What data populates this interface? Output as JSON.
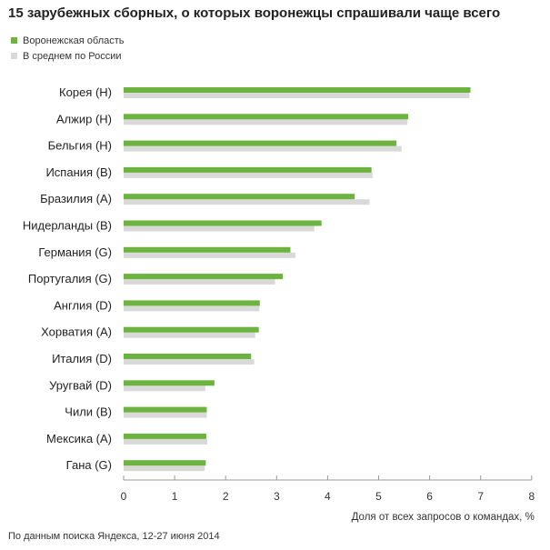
{
  "title": "15 зарубежных сборных, о которых воронежцы спрашивали чаще всего",
  "source": "По данным поиска Яндекса, 12-27 июня 2014",
  "colors": {
    "voronezh": "#6db33f",
    "russia": "#d9d9d9",
    "axis": "#999999"
  },
  "chart_data": {
    "type": "bar",
    "orientation": "horizontal",
    "title": "15 зарубежных сборных, о которых воронежцы спрашивали чаще всего",
    "xlabel": "Доля от всех запросов о командах, %",
    "ylabel": "",
    "xlim": [
      0,
      8
    ],
    "xticks": [
      "0",
      "1",
      "2",
      "3",
      "4",
      "5",
      "6",
      "7",
      "8"
    ],
    "grid": false,
    "legend_position": "top-left",
    "categories": [
      "Корея (H)",
      "Алжир (H)",
      "Бельгия (H)",
      "Испания (B)",
      "Бразилия (A)",
      "Нидерланды (B)",
      "Германия (G)",
      "Португалия (G)",
      "Англия (D)",
      "Хорватия (A)",
      "Италия (D)",
      "Уругвай (D)",
      "Чили (B)",
      "Мексика (A)",
      "Гана (G)"
    ],
    "series": [
      {
        "name": "Воронежская область",
        "values": [
          6.8,
          5.58,
          5.35,
          4.86,
          4.53,
          3.88,
          3.27,
          3.12,
          2.67,
          2.65,
          2.5,
          1.78,
          1.63,
          1.62,
          1.61
        ]
      },
      {
        "name": "В среднем по России",
        "values": [
          6.78,
          5.56,
          5.45,
          4.88,
          4.82,
          3.74,
          3.37,
          2.97,
          2.66,
          2.58,
          2.56,
          1.6,
          1.63,
          1.64,
          1.59
        ]
      }
    ]
  }
}
